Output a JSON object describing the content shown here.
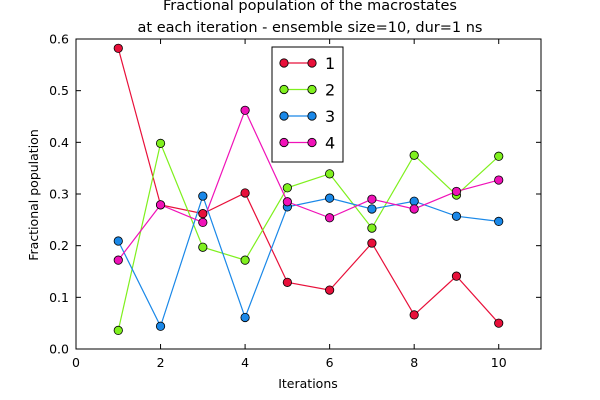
{
  "chart_data": {
    "type": "line",
    "title": [
      "Fractional population of the macrostates",
      "at each iteration - ensemble size=10, dur=1 ns"
    ],
    "xlabel": "Iterations",
    "ylabel": "Fractional population",
    "xlim": [
      0,
      11
    ],
    "ylim": [
      0,
      0.6
    ],
    "xticks": [
      0,
      2,
      4,
      6,
      8,
      10
    ],
    "yticks": [
      0.0,
      0.1,
      0.2,
      0.3,
      0.4,
      0.5,
      0.6
    ],
    "xtick_labels": [
      "0",
      "2",
      "4",
      "6",
      "8",
      "10"
    ],
    "ytick_labels": [
      "0.0",
      "0.1",
      "0.2",
      "0.3",
      "0.4",
      "0.5",
      "0.6"
    ],
    "grid": false,
    "legend_position": "top-center",
    "x": [
      1,
      2,
      3,
      4,
      5,
      6,
      7,
      8,
      9,
      10
    ],
    "series": [
      {
        "name": "1",
        "color": "#e8103a",
        "values": [
          0.582,
          0.279,
          0.262,
          0.302,
          0.129,
          0.114,
          0.205,
          0.066,
          0.141,
          0.05
        ]
      },
      {
        "name": "2",
        "color": "#7ff01e",
        "values": [
          0.036,
          0.398,
          0.197,
          0.172,
          0.312,
          0.339,
          0.234,
          0.375,
          0.298,
          0.373
        ]
      },
      {
        "name": "3",
        "color": "#1a88e8",
        "values": [
          0.209,
          0.044,
          0.296,
          0.061,
          0.275,
          0.292,
          0.271,
          0.286,
          0.257,
          0.247
        ]
      },
      {
        "name": "4",
        "color": "#f012b8",
        "values": [
          0.172,
          0.279,
          0.245,
          0.462,
          0.285,
          0.254,
          0.29,
          0.271,
          0.305,
          0.327
        ]
      }
    ]
  }
}
